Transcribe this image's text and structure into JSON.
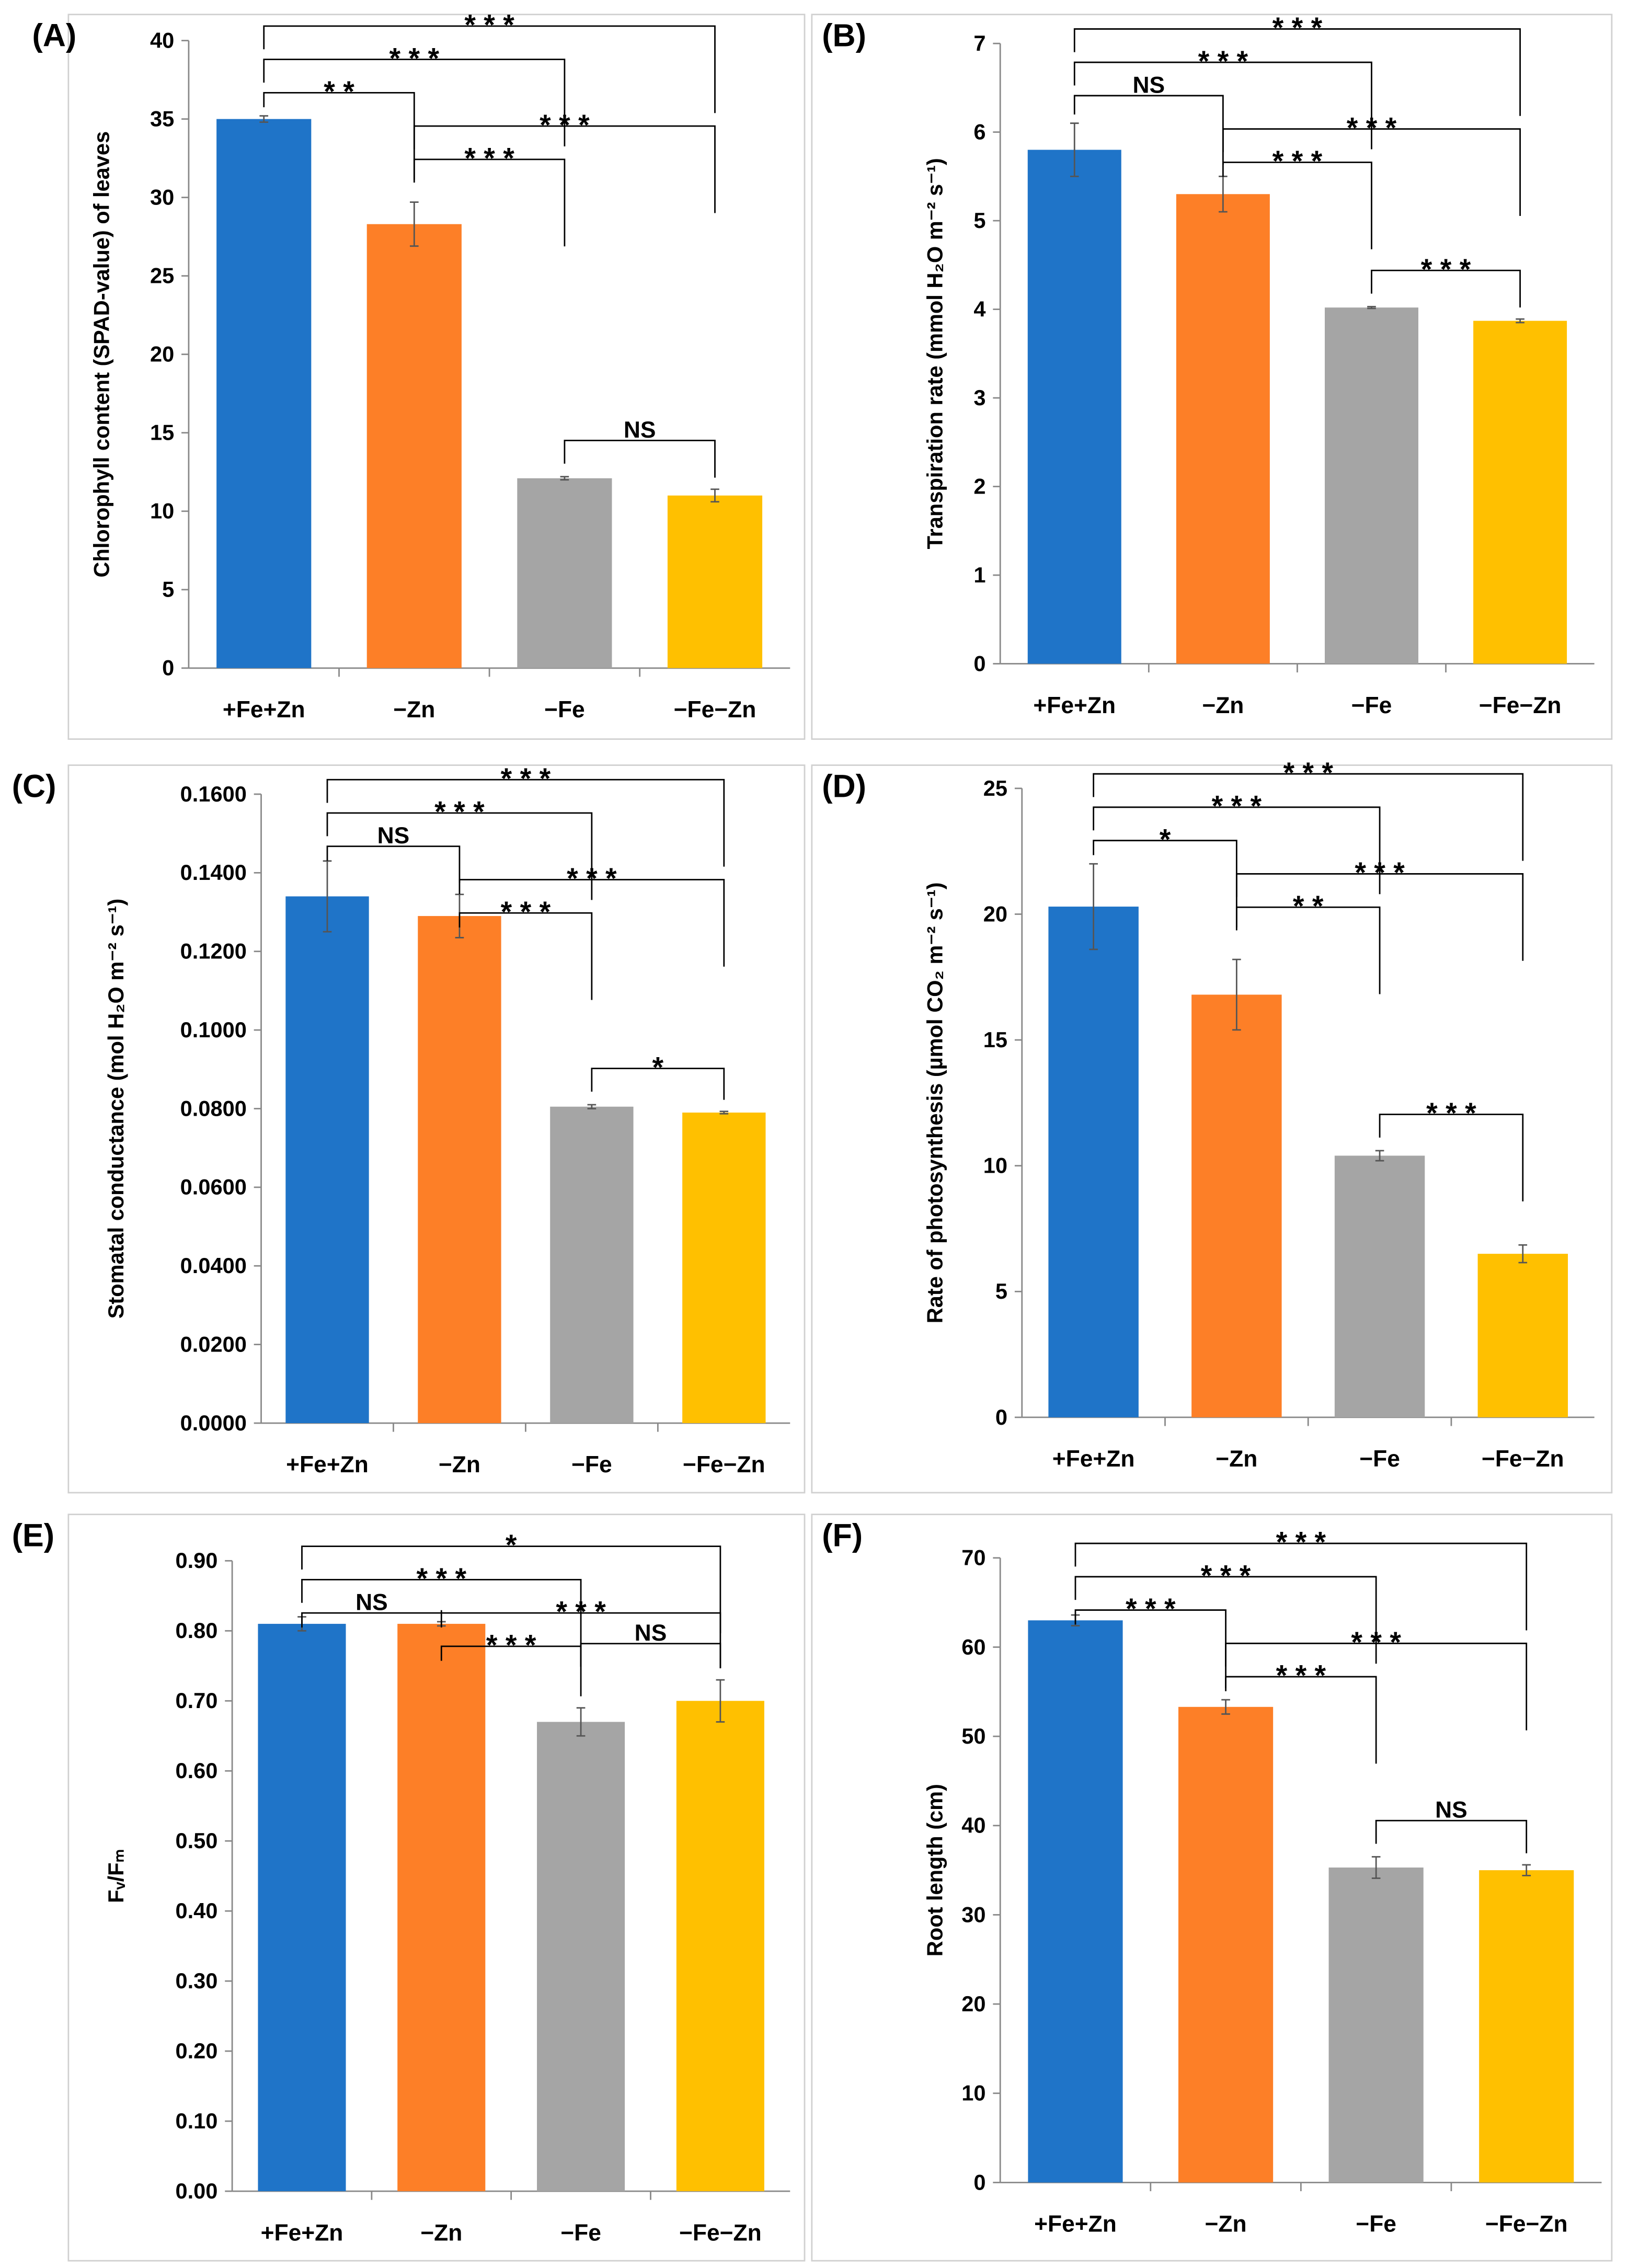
{
  "colors": {
    "+Fe+Zn": "#1f74c8",
    "-Zn": "#fd7f27",
    "-Fe": "#a5a5a5",
    "-Fe-Zn": "#ffc000",
    "frame": "#d0d0d0",
    "axis": "#888888"
  },
  "chart_data": [
    {
      "panel": "(A)",
      "type": "bar",
      "categories": [
        "+Fe+Zn",
        "−Zn",
        "−Fe",
        "−Fe−Zn"
      ],
      "values": [
        35.0,
        28.3,
        12.1,
        11.0
      ],
      "errors": [
        0.2,
        1.4,
        0.1,
        0.4
      ],
      "ylabel": "Chlorophyll content (SPAD-value) of leaves",
      "ylim": [
        0,
        40
      ],
      "yticks": [
        "0",
        "5",
        "10",
        "15",
        "20",
        "25",
        "30",
        "35",
        "40"
      ],
      "significance": [
        {
          "pair": [
            0,
            3
          ],
          "label": "***",
          "level": 0
        },
        {
          "pair": [
            0,
            2
          ],
          "label": "***",
          "level": 1
        },
        {
          "pair": [
            0,
            1
          ],
          "label": "**",
          "level": 2
        },
        {
          "pair": [
            1,
            3
          ],
          "label": "***",
          "level": 3
        },
        {
          "pair": [
            1,
            2
          ],
          "label": "***",
          "level": 4
        },
        {
          "pair": [
            2,
            3
          ],
          "label": "NS",
          "level": "near"
        }
      ]
    },
    {
      "panel": "(B)",
      "type": "bar",
      "categories": [
        "+Fe+Zn",
        "−Zn",
        "−Fe",
        "−Fe−Zn"
      ],
      "values": [
        5.8,
        5.3,
        4.02,
        3.87
      ],
      "errors": [
        0.3,
        0.2,
        0.01,
        0.02
      ],
      "ylabel": "Transpiration rate (mmol H₂O m⁻² s⁻¹)",
      "ylim": [
        0,
        7
      ],
      "yticks": [
        "0",
        "1",
        "2",
        "3",
        "4",
        "5",
        "6",
        "7"
      ],
      "significance": [
        {
          "pair": [
            0,
            3
          ],
          "label": "***",
          "level": 0
        },
        {
          "pair": [
            0,
            2
          ],
          "label": "***",
          "level": 1
        },
        {
          "pair": [
            0,
            1
          ],
          "label": "NS",
          "level": 2
        },
        {
          "pair": [
            1,
            3
          ],
          "label": "***",
          "level": 3
        },
        {
          "pair": [
            1,
            2
          ],
          "label": "***",
          "level": 4
        },
        {
          "pair": [
            2,
            3
          ],
          "label": "***",
          "level": "near"
        }
      ]
    },
    {
      "panel": "(C)",
      "type": "bar",
      "categories": [
        "+Fe+Zn",
        "−Zn",
        "−Fe",
        "−Fe−Zn"
      ],
      "values": [
        0.134,
        0.129,
        0.0805,
        0.079
      ],
      "errors": [
        0.009,
        0.0055,
        0.0005,
        0.0003
      ],
      "ylabel": "Stomatal conductance (mol H₂O m⁻² s⁻¹)",
      "ylim": [
        0,
        0.16
      ],
      "yticks": [
        "0.0000",
        "0.0200",
        "0.0400",
        "0.0600",
        "0.0800",
        "0.1000",
        "0.1200",
        "0.1400",
        "0.1600"
      ],
      "significance": [
        {
          "pair": [
            0,
            3
          ],
          "label": "***",
          "level": 0
        },
        {
          "pair": [
            0,
            2
          ],
          "label": "***",
          "level": 1
        },
        {
          "pair": [
            0,
            1
          ],
          "label": "NS",
          "level": 2
        },
        {
          "pair": [
            1,
            3
          ],
          "label": "***",
          "level": 3
        },
        {
          "pair": [
            1,
            2
          ],
          "label": "***",
          "level": 4
        },
        {
          "pair": [
            2,
            3
          ],
          "label": "*",
          "level": "near"
        }
      ]
    },
    {
      "panel": "(D)",
      "type": "bar",
      "categories": [
        "+Fe+Zn",
        "−Zn",
        "−Fe",
        "−Fe−Zn"
      ],
      "values": [
        20.3,
        16.8,
        10.4,
        6.5
      ],
      "errors": [
        1.7,
        1.4,
        0.2,
        0.35
      ],
      "ylabel": "Rate of photosynthesis (µmol CO₂ m⁻² s⁻¹)",
      "ylim": [
        0,
        25
      ],
      "yticks": [
        "0",
        "5",
        "10",
        "15",
        "20",
        "25"
      ],
      "significance": [
        {
          "pair": [
            0,
            3
          ],
          "label": "***",
          "level": 0
        },
        {
          "pair": [
            0,
            2
          ],
          "label": "***",
          "level": 1
        },
        {
          "pair": [
            0,
            1
          ],
          "label": "*",
          "level": 2
        },
        {
          "pair": [
            1,
            3
          ],
          "label": "***",
          "level": 3
        },
        {
          "pair": [
            1,
            2
          ],
          "label": "**",
          "level": 4
        },
        {
          "pair": [
            2,
            3
          ],
          "label": "***",
          "level": "near"
        }
      ]
    },
    {
      "panel": "(E)",
      "type": "bar",
      "categories": [
        "+Fe+Zn",
        "−Zn",
        "−Fe",
        "−Fe−Zn"
      ],
      "values": [
        0.81,
        0.81,
        0.67,
        0.7
      ],
      "errors": [
        0.01,
        0.003,
        0.02,
        0.03
      ],
      "ylabel": "Fᵥ/Fₘ",
      "ylim": [
        0,
        0.9
      ],
      "yticks": [
        "0.00",
        "0.10",
        "0.20",
        "0.30",
        "0.40",
        "0.50",
        "0.60",
        "0.70",
        "0.80",
        "0.90"
      ],
      "significance": [
        {
          "pair": [
            0,
            3
          ],
          "label": "*",
          "level": 0
        },
        {
          "pair": [
            0,
            2
          ],
          "label": "***",
          "level": 1
        },
        {
          "pair": [
            0,
            1
          ],
          "label": "NS",
          "level": 2
        },
        {
          "pair": [
            1,
            3
          ],
          "label": "***",
          "level": 2
        },
        {
          "pair": [
            1,
            2
          ],
          "label": "***",
          "level": 3
        },
        {
          "pair": [
            2,
            3
          ],
          "label": "NS",
          "level": "near"
        }
      ]
    },
    {
      "panel": "(F)",
      "type": "bar",
      "categories": [
        "+Fe+Zn",
        "−Zn",
        "−Fe",
        "−Fe−Zn"
      ],
      "values": [
        63.0,
        53.3,
        35.3,
        35.0
      ],
      "errors": [
        0.6,
        0.8,
        1.2,
        0.6
      ],
      "ylabel": "Root length (cm)",
      "ylim": [
        0,
        70
      ],
      "yticks": [
        "0",
        "10",
        "20",
        "30",
        "40",
        "50",
        "60",
        "70"
      ],
      "significance": [
        {
          "pair": [
            0,
            3
          ],
          "label": "***",
          "level": 0
        },
        {
          "pair": [
            0,
            2
          ],
          "label": "***",
          "level": 1
        },
        {
          "pair": [
            0,
            1
          ],
          "label": "***",
          "level": 2
        },
        {
          "pair": [
            1,
            3
          ],
          "label": "***",
          "level": 3
        },
        {
          "pair": [
            1,
            2
          ],
          "label": "***",
          "level": 4
        },
        {
          "pair": [
            2,
            3
          ],
          "label": "NS",
          "level": "near"
        }
      ]
    }
  ]
}
